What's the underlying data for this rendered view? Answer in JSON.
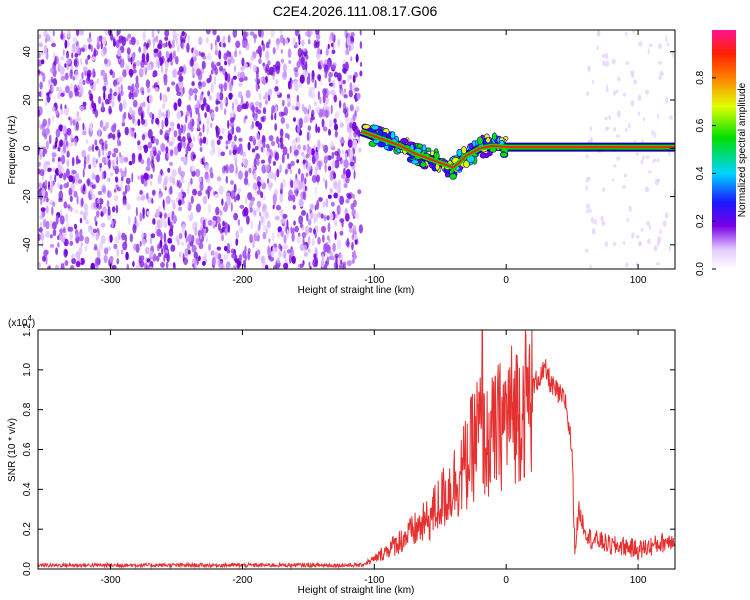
{
  "figure": {
    "title": "C2E4.2026.111.08.17.G06"
  },
  "chart_data": [
    {
      "type": "heatmap",
      "xlabel": "Height of straight line (km)",
      "ylabel": "Frequency (Hz)",
      "xlim": [
        -355,
        128
      ],
      "ylim": [
        -50,
        49
      ],
      "xticks": [
        -300,
        -200,
        -100,
        0,
        100
      ],
      "yticks": [
        -40,
        -20,
        0,
        20,
        40
      ],
      "colorbar": {
        "label": "Normalized spectral amplitude",
        "range": [
          0,
          1
        ],
        "ticks": [
          "0.0",
          "0.2",
          "0.4",
          "0.6",
          "0.8"
        ],
        "colormap": "white-purple-blue-cyan-green-yellow-red-magenta"
      },
      "noise_region_x": [
        -355,
        -110
      ],
      "signal_trace": {
        "x": [
          -110,
          -100,
          -90,
          -80,
          -70,
          -60,
          -50,
          -40,
          -30,
          -20,
          -10,
          0,
          20,
          40,
          60,
          80,
          100,
          128
        ],
        "freq": [
          7,
          5,
          3,
          1,
          -2,
          -4,
          -6,
          -8,
          -3,
          0,
          1,
          0.5,
          0.5,
          0.5,
          0.5,
          0.5,
          0.5,
          0.5
        ]
      },
      "colors": {
        "low": "#e6ccff",
        "mid_low": "#7a00e6",
        "mid": "#00d4ff",
        "mid_high": "#00e000",
        "high": "#ff2000",
        "peak": "#ff1493"
      }
    },
    {
      "type": "line",
      "xlabel": "Height of straight line (km)",
      "ylabel": "SNR (10 * v/v)",
      "y_multiplier": "(x10^4)",
      "xlim": [
        -355,
        128
      ],
      "ylim": [
        0,
        1.2
      ],
      "xticks": [
        -300,
        -200,
        -100,
        0,
        100
      ],
      "yticks": [
        "0.0",
        "0.2",
        "0.4",
        "0.6",
        "0.8",
        "1.0",
        "1.2"
      ],
      "color": "#e53030",
      "series": [
        {
          "x": [
            -355,
            -300,
            -250,
            -200,
            -150,
            -110,
            -100,
            -90,
            -80,
            -70,
            -60,
            -50,
            -40,
            -30,
            -25,
            -20,
            -15,
            -10,
            0,
            10,
            20,
            25,
            30,
            35,
            40,
            45,
            50,
            52,
            55,
            60,
            65,
            70,
            80,
            90,
            100,
            110,
            120,
            128
          ],
          "y": [
            0.02,
            0.02,
            0.02,
            0.02,
            0.02,
            0.02,
            0.05,
            0.1,
            0.15,
            0.2,
            0.25,
            0.35,
            0.45,
            0.55,
            0.65,
            0.75,
            0.65,
            0.7,
            0.8,
            0.85,
            0.92,
            0.97,
            1.0,
            0.92,
            0.88,
            0.85,
            0.6,
            0.1,
            0.3,
            0.2,
            0.15,
            0.15,
            0.12,
            0.12,
            0.1,
            0.12,
            0.14,
            0.16
          ]
        }
      ],
      "peak_spike": {
        "x": -18,
        "y": 1.2
      }
    }
  ]
}
